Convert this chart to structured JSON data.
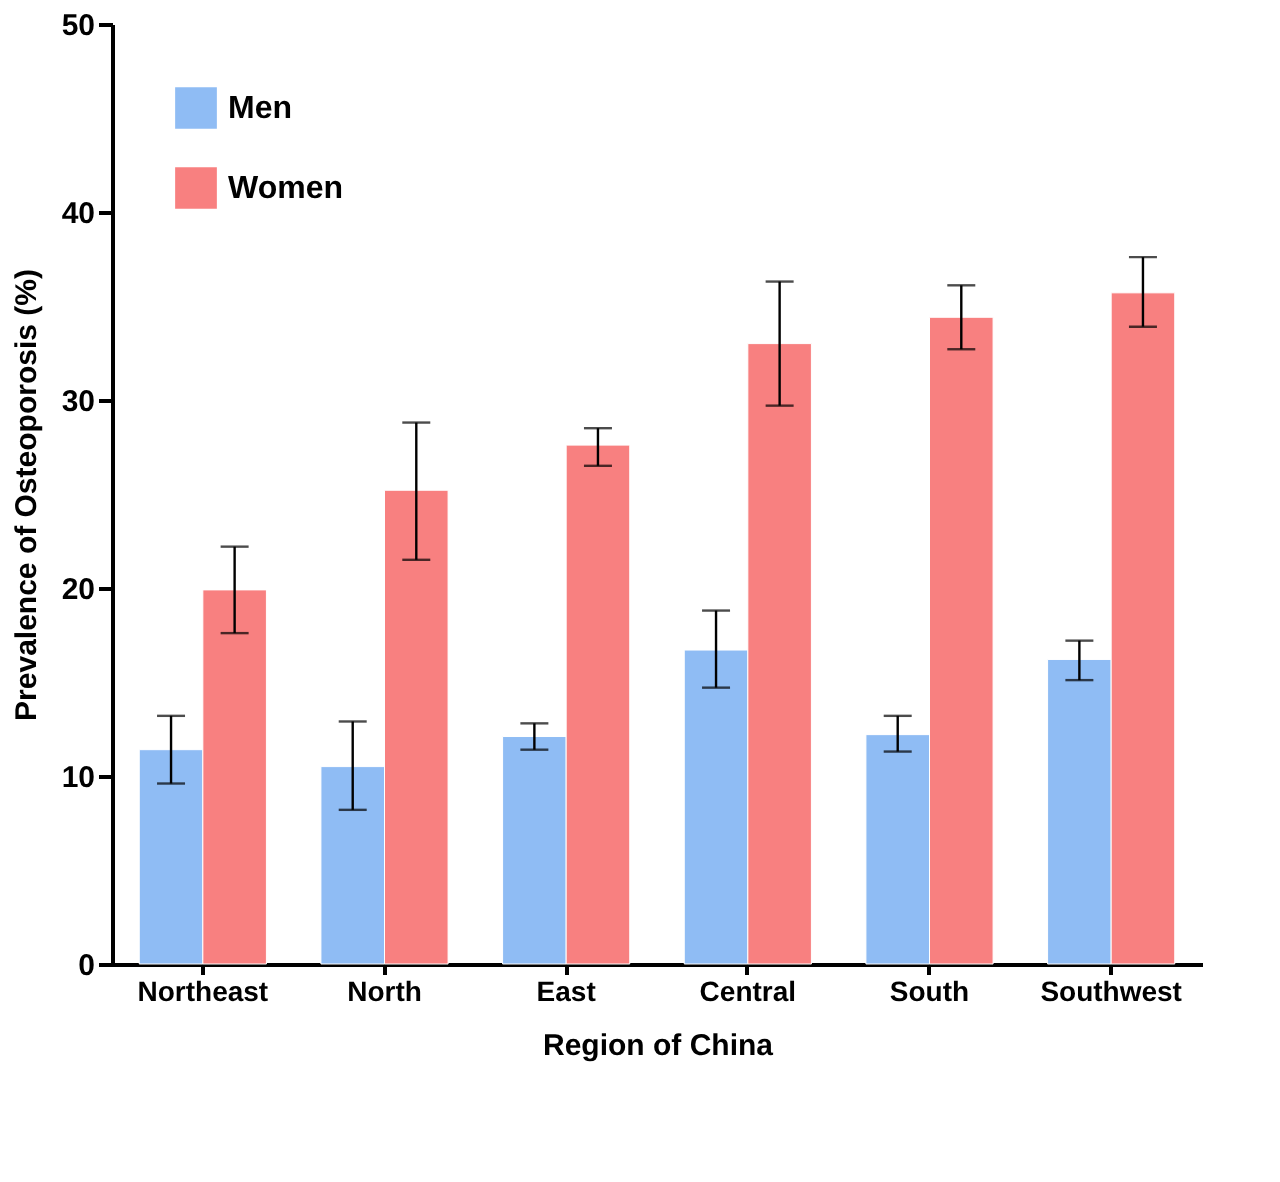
{
  "chart_data": {
    "type": "bar",
    "xlabel": "Region of China",
    "ylabel": "Prevalence of Osteoporosis (%)",
    "categories": [
      "Northeast",
      "North",
      "East",
      "Central",
      "South",
      "Southwest"
    ],
    "series": [
      {
        "name": "Men",
        "color": "#8fbcf4",
        "values": [
          11.4,
          10.5,
          12.1,
          16.7,
          12.2,
          16.2
        ],
        "errors": [
          [
            9.6,
            13.2
          ],
          [
            8.2,
            12.9
          ],
          [
            11.4,
            12.8
          ],
          [
            14.7,
            18.8
          ],
          [
            11.3,
            13.2
          ],
          [
            15.1,
            17.2
          ]
        ]
      },
      {
        "name": "Women",
        "color": "#f88080",
        "values": [
          19.9,
          25.2,
          27.6,
          33.0,
          34.4,
          35.7
        ],
        "errors": [
          [
            17.6,
            22.2
          ],
          [
            21.5,
            28.8
          ],
          [
            26.5,
            28.5
          ],
          [
            29.7,
            36.3
          ],
          [
            32.7,
            36.1
          ],
          [
            33.9,
            37.6
          ]
        ]
      }
    ],
    "ylim": [
      0,
      50
    ],
    "yticks": [
      0,
      10,
      20,
      30,
      40,
      50
    ],
    "grid": false,
    "legend": "top left"
  }
}
